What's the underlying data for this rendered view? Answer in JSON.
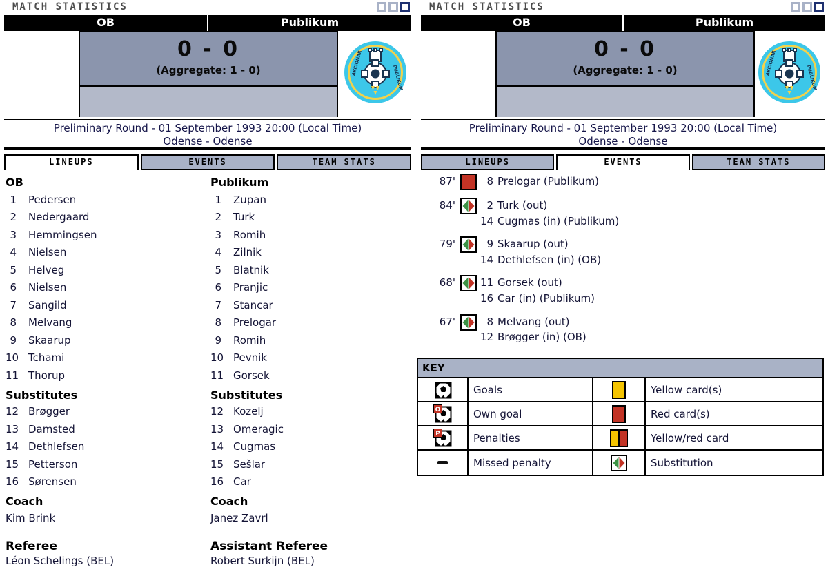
{
  "window": {
    "title": "MATCH STATISTICS"
  },
  "match": {
    "home_team": "OB",
    "away_team": "Publikum",
    "score": "0 - 0",
    "aggregate": "(Aggregate: 1 - 0)",
    "round_line": "Preliminary Round - 01 September 1993 20:00 (Local Time)",
    "venue_line": "Odense - Odense"
  },
  "tabs": {
    "lineups": "LINEUPS",
    "events": "EVENTS",
    "team_stats": "TEAM STATS"
  },
  "labels": {
    "substitutes": "Substitutes",
    "coach": "Coach"
  },
  "lineups": {
    "home": {
      "name": "OB",
      "players": [
        {
          "no": "1",
          "name": "Pedersen"
        },
        {
          "no": "2",
          "name": "Nedergaard"
        },
        {
          "no": "3",
          "name": "Hemmingsen"
        },
        {
          "no": "4",
          "name": "Nielsen"
        },
        {
          "no": "5",
          "name": "Helveg"
        },
        {
          "no": "6",
          "name": "Nielsen"
        },
        {
          "no": "7",
          "name": "Sangild"
        },
        {
          "no": "8",
          "name": "Melvang"
        },
        {
          "no": "9",
          "name": "Skaarup"
        },
        {
          "no": "10",
          "name": "Tchami"
        },
        {
          "no": "11",
          "name": "Thorup"
        }
      ],
      "substitutes": [
        {
          "no": "12",
          "name": "Brøgger"
        },
        {
          "no": "13",
          "name": "Damsted"
        },
        {
          "no": "14",
          "name": "Dethlefsen"
        },
        {
          "no": "15",
          "name": "Petterson"
        },
        {
          "no": "16",
          "name": "Sørensen"
        }
      ],
      "coach": "Kim Brink"
    },
    "away": {
      "name": "Publikum",
      "players": [
        {
          "no": "1",
          "name": "Zupan"
        },
        {
          "no": "2",
          "name": "Turk"
        },
        {
          "no": "3",
          "name": "Romih"
        },
        {
          "no": "4",
          "name": "Zilnik"
        },
        {
          "no": "5",
          "name": "Blatnik"
        },
        {
          "no": "6",
          "name": "Pranjic"
        },
        {
          "no": "7",
          "name": "Stancar"
        },
        {
          "no": "8",
          "name": "Prelogar"
        },
        {
          "no": "9",
          "name": "Romih"
        },
        {
          "no": "10",
          "name": "Pevnik"
        },
        {
          "no": "11",
          "name": "Gorsek"
        }
      ],
      "substitutes": [
        {
          "no": "12",
          "name": "Kozelj"
        },
        {
          "no": "13",
          "name": "Omeragic"
        },
        {
          "no": "14",
          "name": "Cugmas"
        },
        {
          "no": "15",
          "name": "Sešlar"
        },
        {
          "no": "16",
          "name": "Car"
        }
      ],
      "coach": "Janez Zavrl"
    }
  },
  "officials": {
    "referee_label": "Referee",
    "referee_name": "Léon Schelings (BEL)",
    "assistant_label": "Assistant Referee",
    "assistant_name": "Robert Surkijn (BEL)"
  },
  "events": [
    {
      "minute": "87'",
      "icon": "red-card",
      "lines": [
        {
          "no": "8",
          "text": "Prelogar (Publikum)"
        }
      ]
    },
    {
      "minute": "84'",
      "icon": "substitution",
      "lines": [
        {
          "no": "2",
          "text": "Turk (out)"
        },
        {
          "no": "14",
          "text": "Cugmas (in) (Publikum)"
        }
      ]
    },
    {
      "minute": "79'",
      "icon": "substitution",
      "lines": [
        {
          "no": "9",
          "text": "Skaarup (out)"
        },
        {
          "no": "14",
          "text": "Dethlefsen (in) (OB)"
        }
      ]
    },
    {
      "minute": "68'",
      "icon": "substitution",
      "lines": [
        {
          "no": "11",
          "text": "Gorsek (out)"
        },
        {
          "no": "16",
          "text": "Car (in) (Publikum)"
        }
      ]
    },
    {
      "minute": "67'",
      "icon": "substitution",
      "lines": [
        {
          "no": "8",
          "text": "Melvang (out)"
        },
        {
          "no": "12",
          "text": "Brøgger (in) (OB)"
        }
      ]
    }
  ],
  "key": {
    "title": "KEY",
    "rows": [
      {
        "left_icon": "goal-ball",
        "left_label": "Goals",
        "right_icon": "yellow-card",
        "right_label": "Yellow card(s)"
      },
      {
        "left_icon": "own-goal",
        "left_label": "Own goal",
        "right_icon": "red-card",
        "right_label": "Red card(s)"
      },
      {
        "left_icon": "penalty",
        "left_label": "Penalties",
        "right_icon": "yellow-red-card",
        "right_label": "Yellow/red card"
      },
      {
        "left_icon": "missed-penalty",
        "left_label": "Missed penalty",
        "right_icon": "substitution",
        "right_label": "Substitution"
      }
    ]
  },
  "colors": {
    "score_box_top": "#8b95ad",
    "score_box_bottom": "#b3b9c9",
    "tab_inactive": "#a9b2c7",
    "key_header_bg": "#a9b2c6",
    "red_card": "#c23325",
    "yellow_card": "#f4c400",
    "substitution_green": "#3d9345",
    "crest_cyan": "#3cc7e9",
    "crest_yellow": "#f2d24b"
  }
}
